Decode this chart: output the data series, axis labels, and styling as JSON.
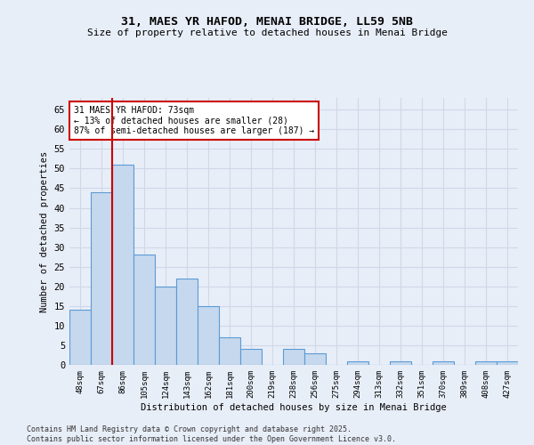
{
  "title1": "31, MAES YR HAFOD, MENAI BRIDGE, LL59 5NB",
  "title2": "Size of property relative to detached houses in Menai Bridge",
  "xlabel": "Distribution of detached houses by size in Menai Bridge",
  "ylabel": "Number of detached properties",
  "categories": [
    "48sqm",
    "67sqm",
    "86sqm",
    "105sqm",
    "124sqm",
    "143sqm",
    "162sqm",
    "181sqm",
    "200sqm",
    "219sqm",
    "238sqm",
    "256sqm",
    "275sqm",
    "294sqm",
    "313sqm",
    "332sqm",
    "351sqm",
    "370sqm",
    "389sqm",
    "408sqm",
    "427sqm"
  ],
  "values": [
    14,
    44,
    51,
    28,
    20,
    22,
    15,
    7,
    4,
    0,
    4,
    3,
    0,
    1,
    0,
    1,
    0,
    1,
    0,
    1,
    1
  ],
  "bar_color": "#c5d8ed",
  "bar_edge_color": "#5b9bd5",
  "red_line_x": 1.5,
  "annotation_title": "31 MAES YR HAFOD: 73sqm",
  "annotation_line1": "← 13% of detached houses are smaller (28)",
  "annotation_line2": "87% of semi-detached houses are larger (187) →",
  "annotation_box_color": "#ffffff",
  "annotation_box_edge": "#cc0000",
  "red_line_color": "#cc0000",
  "ylim": [
    0,
    68
  ],
  "yticks": [
    0,
    5,
    10,
    15,
    20,
    25,
    30,
    35,
    40,
    45,
    50,
    55,
    60,
    65
  ],
  "grid_color": "#d0d8e8",
  "bg_color": "#e8eef8",
  "footer1": "Contains HM Land Registry data © Crown copyright and database right 2025.",
  "footer2": "Contains public sector information licensed under the Open Government Licence v3.0."
}
